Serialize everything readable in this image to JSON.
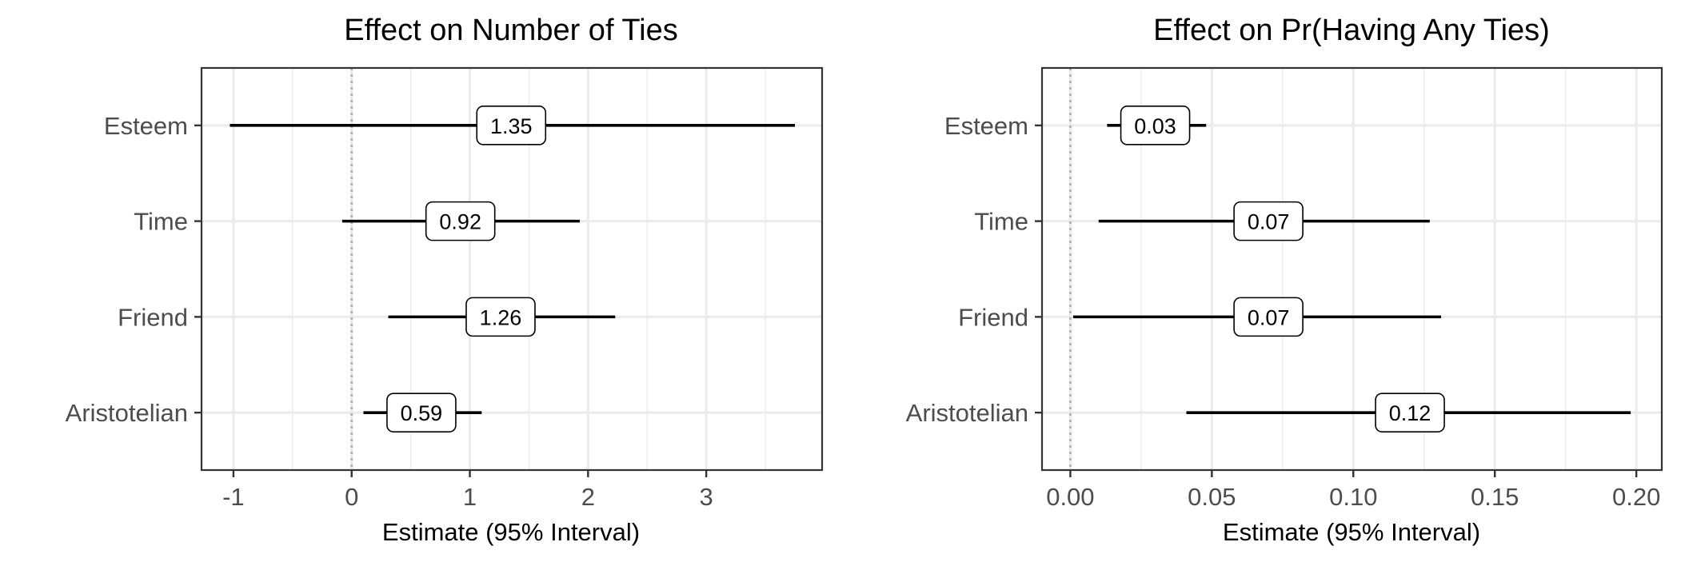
{
  "chart_data": [
    {
      "type": "forest",
      "title": "Effect on Number of Ties",
      "xlabel": "Estimate (95% Interval)",
      "categories": [
        "Esteem",
        "Time",
        "Friend",
        "Aristotelian"
      ],
      "estimates": [
        1.35,
        0.92,
        1.26,
        0.59
      ],
      "estimate_labels": [
        "1.35",
        "0.92",
        "1.26",
        "0.59"
      ],
      "lower": [
        -1.03,
        -0.08,
        0.31,
        0.1
      ],
      "upper": [
        3.75,
        1.93,
        2.23,
        1.1
      ],
      "xlim": [
        -1.27,
        3.98
      ],
      "xticks": [
        -1,
        0,
        1,
        2,
        3
      ],
      "xtick_labels": [
        "-1",
        "0",
        "1",
        "2",
        "3"
      ],
      "xminor": [
        -0.5,
        0.5,
        1.5,
        2.5,
        3.5
      ],
      "reference_line": 0,
      "grid": true
    },
    {
      "type": "forest",
      "title": "Effect on Pr(Having Any Ties)",
      "xlabel": "Estimate (95% Interval)",
      "categories": [
        "Esteem",
        "Time",
        "Friend",
        "Aristotelian"
      ],
      "estimates": [
        0.03,
        0.07,
        0.07,
        0.12
      ],
      "estimate_labels": [
        "0.03",
        "0.07",
        "0.07",
        "0.12"
      ],
      "lower": [
        0.013,
        0.01,
        0.001,
        0.041
      ],
      "upper": [
        0.048,
        0.127,
        0.131,
        0.198
      ],
      "xlim": [
        -0.01,
        0.209
      ],
      "xticks": [
        0.0,
        0.05,
        0.1,
        0.15,
        0.2
      ],
      "xtick_labels": [
        "0.00",
        "0.05",
        "0.10",
        "0.15",
        "0.20"
      ],
      "xminor": [
        0.025,
        0.075,
        0.125,
        0.175
      ],
      "reference_line": 0,
      "grid": true
    }
  ],
  "colors": {
    "background": "#ffffff",
    "grid": "#ebebeb",
    "border": "#333333",
    "interval": "#000000",
    "reference": "#b3b3b3",
    "tick_text": "#4d4d4d"
  }
}
